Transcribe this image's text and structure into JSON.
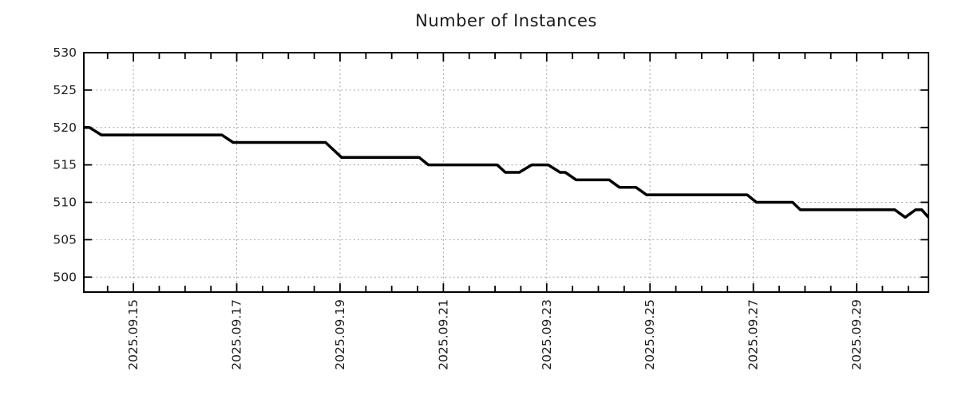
{
  "chart_data": {
    "type": "line",
    "title": "Number of Instances",
    "legend": "none",
    "grid": {
      "style": "dotted",
      "color": "#9c9c9c"
    },
    "colors": {
      "line": "#000000",
      "axis": "#000000",
      "text": "#1c1c1c",
      "background": "#ffffff"
    },
    "x_axis": {
      "kind": "time",
      "tick_labels": [
        "2025.09.15",
        "2025.09.17",
        "2025.09.19",
        "2025.09.21",
        "2025.09.23",
        "2025.09.25",
        "2025.09.27",
        "2025.09.29"
      ],
      "major_tick_days": [
        1,
        3,
        5,
        7,
        9,
        11,
        13,
        15
      ],
      "minor_tick_step_days": 0.5,
      "range_days": [
        0.04,
        16.39
      ]
    },
    "y_axis": {
      "ticks": [
        500,
        505,
        510,
        515,
        520,
        525,
        530
      ],
      "range": [
        498,
        530
      ]
    },
    "series": [
      {
        "name": "instances",
        "color": "#000000",
        "line_width": 3.5,
        "points": [
          [
            0.04,
            520
          ],
          [
            0.15,
            520
          ],
          [
            0.38,
            519
          ],
          [
            2.71,
            519
          ],
          [
            2.93,
            518
          ],
          [
            4.72,
            518
          ],
          [
            5.03,
            516
          ],
          [
            6.53,
            516
          ],
          [
            6.71,
            515
          ],
          [
            8.04,
            515
          ],
          [
            8.2,
            514
          ],
          [
            8.47,
            514
          ],
          [
            8.71,
            515
          ],
          [
            9.03,
            515
          ],
          [
            9.26,
            514
          ],
          [
            9.36,
            514
          ],
          [
            9.57,
            513
          ],
          [
            10.21,
            513
          ],
          [
            10.41,
            512
          ],
          [
            10.73,
            512
          ],
          [
            10.93,
            511
          ],
          [
            12.88,
            511
          ],
          [
            13.06,
            510
          ],
          [
            13.76,
            510
          ],
          [
            13.91,
            509
          ],
          [
            15.74,
            509
          ],
          [
            15.94,
            508
          ],
          [
            16.14,
            509
          ],
          [
            16.26,
            509
          ],
          [
            16.39,
            508
          ]
        ]
      }
    ]
  }
}
